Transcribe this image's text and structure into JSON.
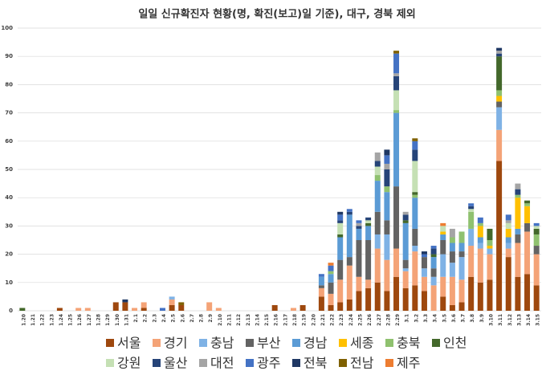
{
  "chart_data": {
    "type": "bar",
    "stacked": true,
    "title": "일일 신규확진자 현황(명, 확진(보고)일 기준), 대구, 경북 제외",
    "categories": [
      "1.20",
      "1.21",
      "1.22",
      "1.23",
      "1.24",
      "1.25",
      "1.26",
      "1.27",
      "1.28",
      "1.29",
      "1.30",
      "1.31",
      "2.1",
      "2.2",
      "2.3",
      "2.4",
      "2.5",
      "2.6",
      "2.7",
      "2.8",
      "2.9",
      "2.10",
      "2.11",
      "2.12",
      "2.13",
      "2.14",
      "2.15",
      "2.16",
      "2.17",
      "2.18",
      "2.19",
      "2.20",
      "2.21",
      "2.22",
      "2.23",
      "2.24",
      "2.25",
      "2.26",
      "2.27",
      "2.28",
      "2.29",
      "3.1",
      "3.2",
      "3.3",
      "3.4",
      "3.5",
      "3.6",
      "3.7",
      "3.8",
      "3.9",
      "3.10",
      "3.11",
      "3.12",
      "3.13",
      "3.14",
      "3.15"
    ],
    "ylim": [
      0,
      100
    ],
    "yticks": [
      0,
      10,
      20,
      30,
      40,
      50,
      60,
      70,
      80,
      90,
      100
    ],
    "grid": true,
    "legend": "bottom",
    "series": [
      {
        "name": "서울",
        "color": "#9e480e",
        "values": [
          0,
          0,
          0,
          0,
          1,
          0,
          0,
          0,
          0,
          0,
          3,
          3,
          0,
          1,
          0,
          0,
          2,
          2,
          0,
          0,
          0,
          0,
          0,
          0,
          0,
          0,
          0,
          2,
          0,
          0,
          2,
          0,
          5,
          2,
          3,
          4,
          7,
          8,
          10,
          7,
          12,
          8,
          9,
          7,
          0,
          5,
          2,
          3,
          12,
          10,
          11,
          53,
          19,
          12,
          13,
          9
        ]
      },
      {
        "name": "경기",
        "color": "#f4a377",
        "values": [
          0,
          0,
          0,
          0,
          0,
          0,
          1,
          1,
          0,
          0,
          0,
          0,
          1,
          2,
          0,
          0,
          2,
          0,
          0,
          0,
          3,
          1,
          0,
          0,
          0,
          0,
          0,
          0,
          0,
          1,
          0,
          0,
          3,
          4,
          8,
          12,
          5,
          3,
          12,
          11,
          10,
          6,
          12,
          5,
          9,
          7,
          10,
          8,
          11,
          12,
          9,
          11,
          3,
          12,
          15,
          11
        ]
      },
      {
        "name": "충남",
        "color": "#7fb2e5",
        "values": [
          0,
          0,
          0,
          0,
          0,
          0,
          0,
          0,
          0,
          0,
          0,
          0,
          0,
          0,
          0,
          0,
          1,
          0,
          0,
          0,
          0,
          0,
          0,
          0,
          0,
          0,
          0,
          0,
          0,
          0,
          0,
          0,
          0,
          0,
          0,
          0,
          0,
          0,
          5,
          9,
          0,
          1,
          2,
          3,
          3,
          8,
          5,
          8,
          6,
          2,
          2,
          8,
          2,
          0,
          0,
          0
        ]
      },
      {
        "name": "부산",
        "color": "#636363",
        "values": [
          0,
          0,
          0,
          0,
          0,
          0,
          0,
          0,
          0,
          0,
          0,
          0,
          0,
          0,
          0,
          0,
          0,
          0,
          0,
          0,
          0,
          0,
          0,
          0,
          0,
          0,
          0,
          0,
          0,
          0,
          0,
          0,
          1,
          4,
          7,
          3,
          13,
          14,
          8,
          5,
          22,
          3,
          6,
          4,
          3,
          5,
          4,
          2,
          0,
          0,
          0,
          2,
          0,
          3,
          3,
          3
        ]
      },
      {
        "name": "경남",
        "color": "#5b9bd5",
        "values": [
          0,
          0,
          0,
          0,
          0,
          0,
          0,
          0,
          0,
          0,
          0,
          0,
          0,
          0,
          0,
          0,
          0,
          0,
          0,
          0,
          0,
          0,
          0,
          0,
          0,
          0,
          0,
          0,
          0,
          0,
          0,
          0,
          3,
          3,
          8,
          15,
          4,
          5,
          11,
          10,
          26,
          13,
          11,
          0,
          4,
          2,
          3,
          3,
          0,
          2,
          0,
          0,
          2,
          2,
          0,
          0
        ]
      },
      {
        "name": "세종",
        "color": "#ffc000",
        "values": [
          0,
          0,
          0,
          0,
          0,
          0,
          0,
          0,
          0,
          0,
          0,
          0,
          0,
          0,
          0,
          0,
          0,
          0,
          0,
          0,
          0,
          0,
          0,
          0,
          0,
          0,
          0,
          0,
          0,
          0,
          0,
          0,
          0,
          0,
          0,
          0,
          0,
          0,
          0,
          0,
          0,
          0,
          0,
          0,
          0,
          1,
          0,
          0,
          0,
          4,
          1,
          2,
          3,
          11,
          6,
          0
        ]
      },
      {
        "name": "충북",
        "color": "#8fc16f",
        "values": [
          0,
          0,
          0,
          0,
          0,
          0,
          0,
          0,
          0,
          0,
          0,
          0,
          0,
          0,
          0,
          0,
          0,
          0,
          0,
          0,
          0,
          0,
          0,
          0,
          0,
          0,
          0,
          0,
          0,
          0,
          0,
          0,
          0,
          1,
          0,
          0,
          0,
          0,
          2,
          2,
          1,
          0,
          1,
          0,
          0,
          0,
          2,
          4,
          6,
          1,
          2,
          2,
          0,
          1,
          1,
          4
        ]
      },
      {
        "name": "인천",
        "color": "#43682b",
        "values": [
          1,
          0,
          0,
          0,
          0,
          0,
          0,
          0,
          0,
          0,
          0,
          0,
          0,
          0,
          0,
          0,
          0,
          0,
          0,
          0,
          0,
          0,
          0,
          0,
          0,
          0,
          0,
          0,
          0,
          0,
          0,
          0,
          0,
          0,
          1,
          0,
          0,
          1,
          0,
          0,
          0,
          1,
          1,
          0,
          1,
          0,
          0,
          0,
          0,
          0,
          4,
          12,
          0,
          0,
          1,
          2
        ]
      },
      {
        "name": "강원",
        "color": "#c5e0b4",
        "values": [
          0,
          0,
          0,
          0,
          0,
          0,
          0,
          0,
          0,
          0,
          0,
          0,
          0,
          0,
          0,
          0,
          0,
          0,
          0,
          0,
          0,
          0,
          0,
          0,
          0,
          0,
          0,
          0,
          0,
          0,
          0,
          0,
          0,
          0,
          4,
          0,
          0,
          1,
          3,
          0,
          7,
          0,
          11,
          0,
          0,
          2,
          0,
          0,
          1,
          0,
          0,
          0,
          2,
          0,
          0,
          1
        ]
      },
      {
        "name": "울산",
        "color": "#264478",
        "values": [
          0,
          0,
          0,
          0,
          0,
          0,
          0,
          0,
          0,
          0,
          0,
          0,
          0,
          0,
          0,
          0,
          0,
          0,
          0,
          0,
          0,
          0,
          0,
          0,
          0,
          0,
          0,
          0,
          0,
          0,
          0,
          0,
          0,
          0,
          1,
          1,
          1,
          1,
          2,
          6,
          5,
          2,
          4,
          0,
          2,
          0,
          0,
          0,
          1,
          0,
          0,
          1,
          0,
          2,
          0,
          0
        ]
      },
      {
        "name": "대전",
        "color": "#a5a5a5",
        "values": [
          0,
          0,
          0,
          0,
          0,
          0,
          0,
          0,
          0,
          0,
          0,
          0,
          0,
          0,
          0,
          0,
          0,
          0,
          0,
          0,
          0,
          0,
          0,
          0,
          0,
          0,
          0,
          0,
          0,
          0,
          0,
          0,
          0,
          0,
          0,
          0,
          1,
          0,
          3,
          2,
          1,
          1,
          0,
          0,
          0,
          0,
          3,
          0,
          0,
          0,
          0,
          1,
          1,
          2,
          0,
          0
        ]
      },
      {
        "name": "광주",
        "color": "#4472c4",
        "values": [
          0,
          0,
          0,
          0,
          0,
          0,
          0,
          0,
          0,
          0,
          0,
          0,
          0,
          0,
          0,
          1,
          0,
          0,
          0,
          0,
          0,
          0,
          0,
          0,
          0,
          0,
          0,
          0,
          0,
          0,
          0,
          0,
          1,
          2,
          2,
          1,
          1,
          0,
          0,
          3,
          7,
          0,
          3,
          1,
          1,
          0,
          0,
          0,
          1,
          2,
          0,
          0,
          2,
          0,
          0,
          1
        ]
      },
      {
        "name": "전북",
        "color": "#1f3864",
        "values": [
          0,
          0,
          0,
          0,
          0,
          0,
          0,
          0,
          0,
          0,
          0,
          1,
          0,
          0,
          0,
          0,
          0,
          0,
          0,
          0,
          0,
          0,
          0,
          0,
          0,
          0,
          0,
          0,
          0,
          0,
          0,
          0,
          0,
          0,
          1,
          0,
          0,
          0,
          0,
          2,
          0,
          0,
          0,
          1,
          0,
          0,
          0,
          0,
          0,
          0,
          0,
          1,
          0,
          0,
          0,
          0
        ]
      },
      {
        "name": "전남",
        "color": "#7f6000",
        "values": [
          0,
          0,
          0,
          0,
          0,
          0,
          0,
          0,
          0,
          0,
          0,
          0,
          0,
          0,
          0,
          0,
          0,
          1,
          0,
          0,
          0,
          0,
          0,
          0,
          0,
          0,
          0,
          0,
          0,
          0,
          0,
          0,
          0,
          0,
          0,
          0,
          0,
          0,
          0,
          0,
          1,
          0,
          1,
          0,
          0,
          0,
          0,
          0,
          0,
          0,
          0,
          0,
          0,
          0,
          0,
          0
        ]
      },
      {
        "name": "제주",
        "color": "#ed7d31",
        "values": [
          0,
          0,
          0,
          0,
          0,
          0,
          0,
          0,
          0,
          0,
          0,
          0,
          0,
          0,
          0,
          0,
          0,
          0,
          0,
          0,
          0,
          0,
          0,
          0,
          0,
          0,
          0,
          0,
          0,
          0,
          0,
          0,
          0,
          1,
          0,
          0,
          0,
          0,
          0,
          0,
          0,
          0,
          0,
          0,
          0,
          1,
          0,
          0,
          0,
          0,
          0,
          0,
          0,
          0,
          0,
          0
        ]
      }
    ]
  }
}
